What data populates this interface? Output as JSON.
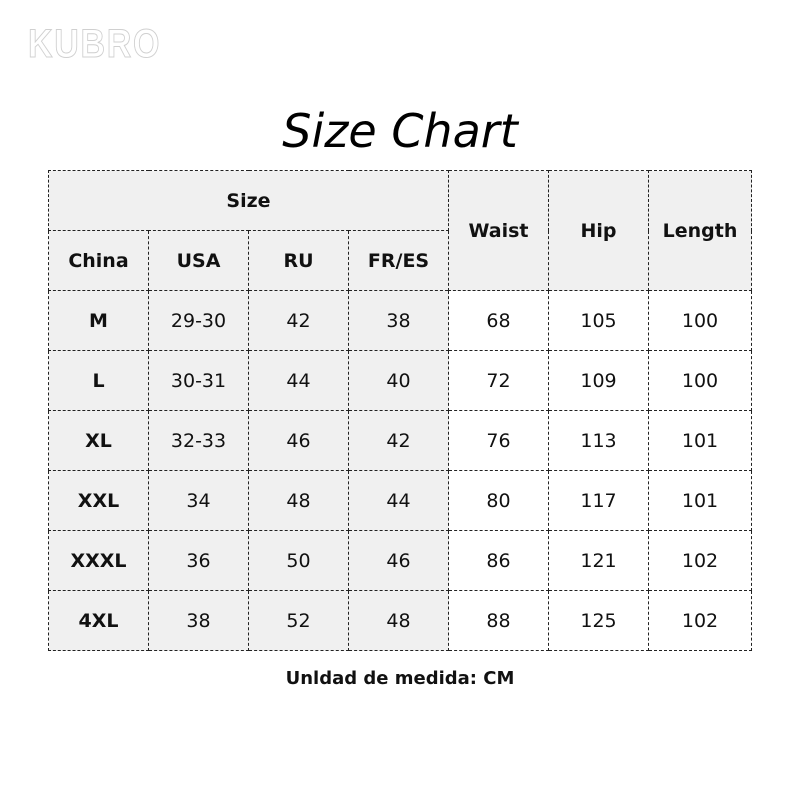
{
  "logo": "KUBRO",
  "title": "Size Chart",
  "header": {
    "size_group": "Size",
    "china": "China",
    "usa": "USA",
    "ru": "RU",
    "fres": "FR/ES",
    "waist": "Waist",
    "hip": "Hip",
    "length": "Length"
  },
  "rows": [
    [
      "M",
      "29-30",
      "42",
      "38",
      "68",
      "105",
      "100"
    ],
    [
      "L",
      "30-31",
      "44",
      "40",
      "72",
      "109",
      "100"
    ],
    [
      "XL",
      "32-33",
      "46",
      "42",
      "76",
      "113",
      "101"
    ],
    [
      "XXL",
      "34",
      "48",
      "44",
      "80",
      "117",
      "101"
    ],
    [
      "XXXL",
      "36",
      "50",
      "46",
      "86",
      "121",
      "102"
    ],
    [
      "4XL",
      "38",
      "52",
      "48",
      "88",
      "125",
      "102"
    ]
  ],
  "footer": "Unldad de medida: CM",
  "colors": {
    "header_bg": "#f0f0f0",
    "border": "#222222"
  }
}
